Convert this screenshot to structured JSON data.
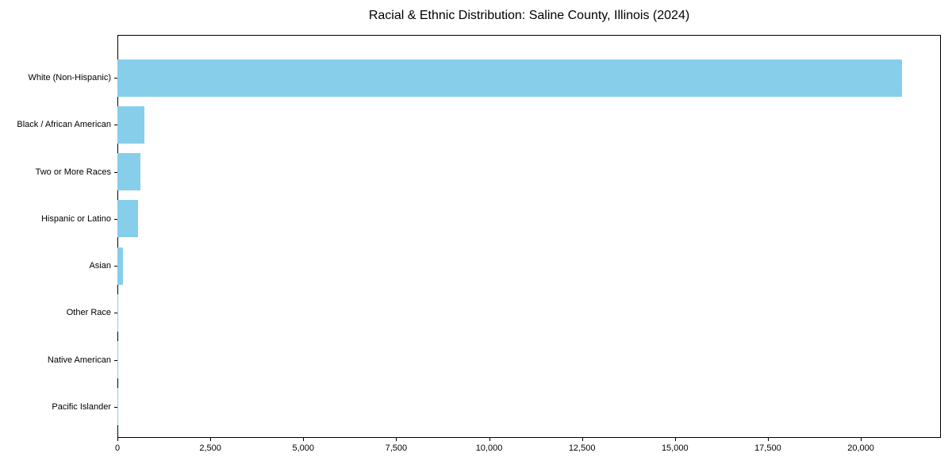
{
  "title": "Racial & Ethnic Distribution: Saline County, Illinois (2024)",
  "chart_data": {
    "type": "bar",
    "orientation": "horizontal",
    "title": "Racial & Ethnic Distribution: Saline County, Illinois (2024)",
    "categories": [
      "White (Non-Hispanic)",
      "Black / African American",
      "Two or More Races",
      "Hispanic or Latino",
      "Asian",
      "Other Race",
      "Native American",
      "Pacific Islander"
    ],
    "values": [
      21100,
      730,
      620,
      550,
      140,
      20,
      10,
      3
    ],
    "bar_color": "#87CEEB",
    "xlabel": "",
    "ylabel": "",
    "xlim": [
      0,
      22155
    ],
    "x_ticks": [
      0,
      2500,
      5000,
      7500,
      10000,
      12500,
      15000,
      17500,
      20000
    ],
    "x_tick_labels": [
      "0",
      "2,500",
      "5,000",
      "7,500",
      "10,000",
      "12,500",
      "15,000",
      "17,500",
      "20,000"
    ],
    "grid": false,
    "legend": null,
    "sorted": "descending"
  }
}
